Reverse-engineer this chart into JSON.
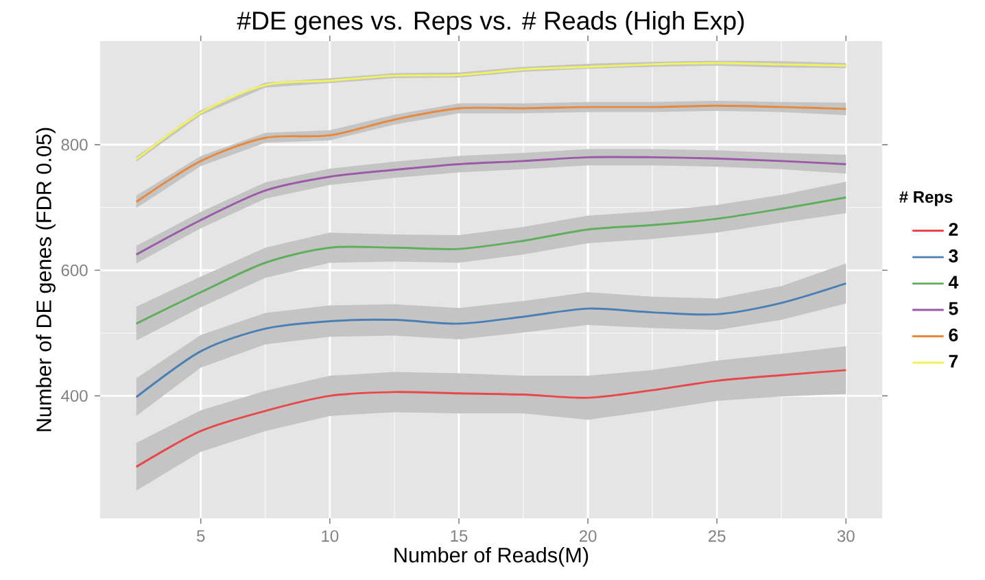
{
  "chart_data": {
    "type": "line",
    "title": "#DE genes vs. Reps vs. # Reads (High Exp)",
    "xlabel": "Number of Reads(M)",
    "ylabel": "Number of DE genes (FDR 0.05)",
    "legend_title": "# Reps",
    "x": [
      2.5,
      5,
      7.5,
      10,
      12.5,
      15,
      17.5,
      20,
      22.5,
      25,
      27.5,
      30
    ],
    "xlim": [
      1.1,
      31.4
    ],
    "ylim": [
      205,
      965
    ],
    "xticks": [
      5,
      10,
      15,
      20,
      25,
      30
    ],
    "yticks": [
      400,
      600,
      800
    ],
    "grid": true,
    "legend": "right",
    "marker": "none",
    "line_style": "solid",
    "series": [
      {
        "name": "2",
        "color": "#e8474a",
        "values": [
          287,
          344,
          376,
          400,
          406,
          404,
          402,
          397,
          409,
          424,
          433,
          441
        ],
        "lower": [
          249,
          311,
          344,
          368,
          374,
          372,
          372,
          362,
          376,
          392,
          399,
          403
        ],
        "upper": [
          325,
          377,
          408,
          432,
          438,
          436,
          432,
          432,
          441,
          456,
          467,
          479
        ]
      },
      {
        "name": "3",
        "color": "#4a7fb5",
        "values": [
          398,
          471,
          507,
          519,
          521,
          515,
          526,
          539,
          533,
          530,
          548,
          579
        ],
        "lower": [
          368,
          445,
          482,
          494,
          496,
          490,
          501,
          513,
          508,
          505,
          521,
          547
        ],
        "upper": [
          428,
          497,
          532,
          544,
          546,
          540,
          551,
          565,
          558,
          555,
          575,
          611
        ]
      },
      {
        "name": "4",
        "color": "#5fae5b",
        "values": [
          515,
          565,
          612,
          636,
          636,
          634,
          647,
          665,
          672,
          682,
          698,
          716
        ],
        "lower": [
          488,
          541,
          588,
          612,
          614,
          612,
          625,
          643,
          650,
          660,
          676,
          691
        ],
        "upper": [
          542,
          590,
          636,
          660,
          657,
          656,
          669,
          687,
          694,
          704,
          720,
          741
        ]
      },
      {
        "name": "5",
        "color": "#9b59a8",
        "values": [
          625,
          680,
          727,
          749,
          760,
          769,
          774,
          780,
          780,
          778,
          774,
          769
        ],
        "lower": [
          611,
          667,
          714,
          736,
          747,
          756,
          761,
          767,
          767,
          765,
          761,
          754
        ],
        "upper": [
          639,
          693,
          740,
          762,
          773,
          782,
          787,
          793,
          793,
          791,
          787,
          784
        ]
      },
      {
        "name": "6",
        "color": "#e8883a",
        "values": [
          709,
          774,
          811,
          815,
          840,
          858,
          858,
          860,
          860,
          862,
          860,
          857
        ],
        "lower": [
          699,
          766,
          803,
          807,
          832,
          850,
          850,
          852,
          852,
          854,
          852,
          847
        ],
        "upper": [
          719,
          782,
          819,
          823,
          848,
          866,
          866,
          868,
          868,
          870,
          868,
          867
        ]
      },
      {
        "name": "7",
        "color": "#f2f25a",
        "values": [
          777,
          851,
          895,
          902,
          910,
          911,
          920,
          924,
          928,
          930,
          928,
          926
        ],
        "lower": [
          773,
          847,
          891,
          898,
          906,
          907,
          916,
          921,
          924,
          926,
          923,
          922
        ],
        "upper": [
          781,
          855,
          899,
          906,
          914,
          915,
          924,
          929,
          932,
          934,
          933,
          930
        ]
      }
    ]
  }
}
